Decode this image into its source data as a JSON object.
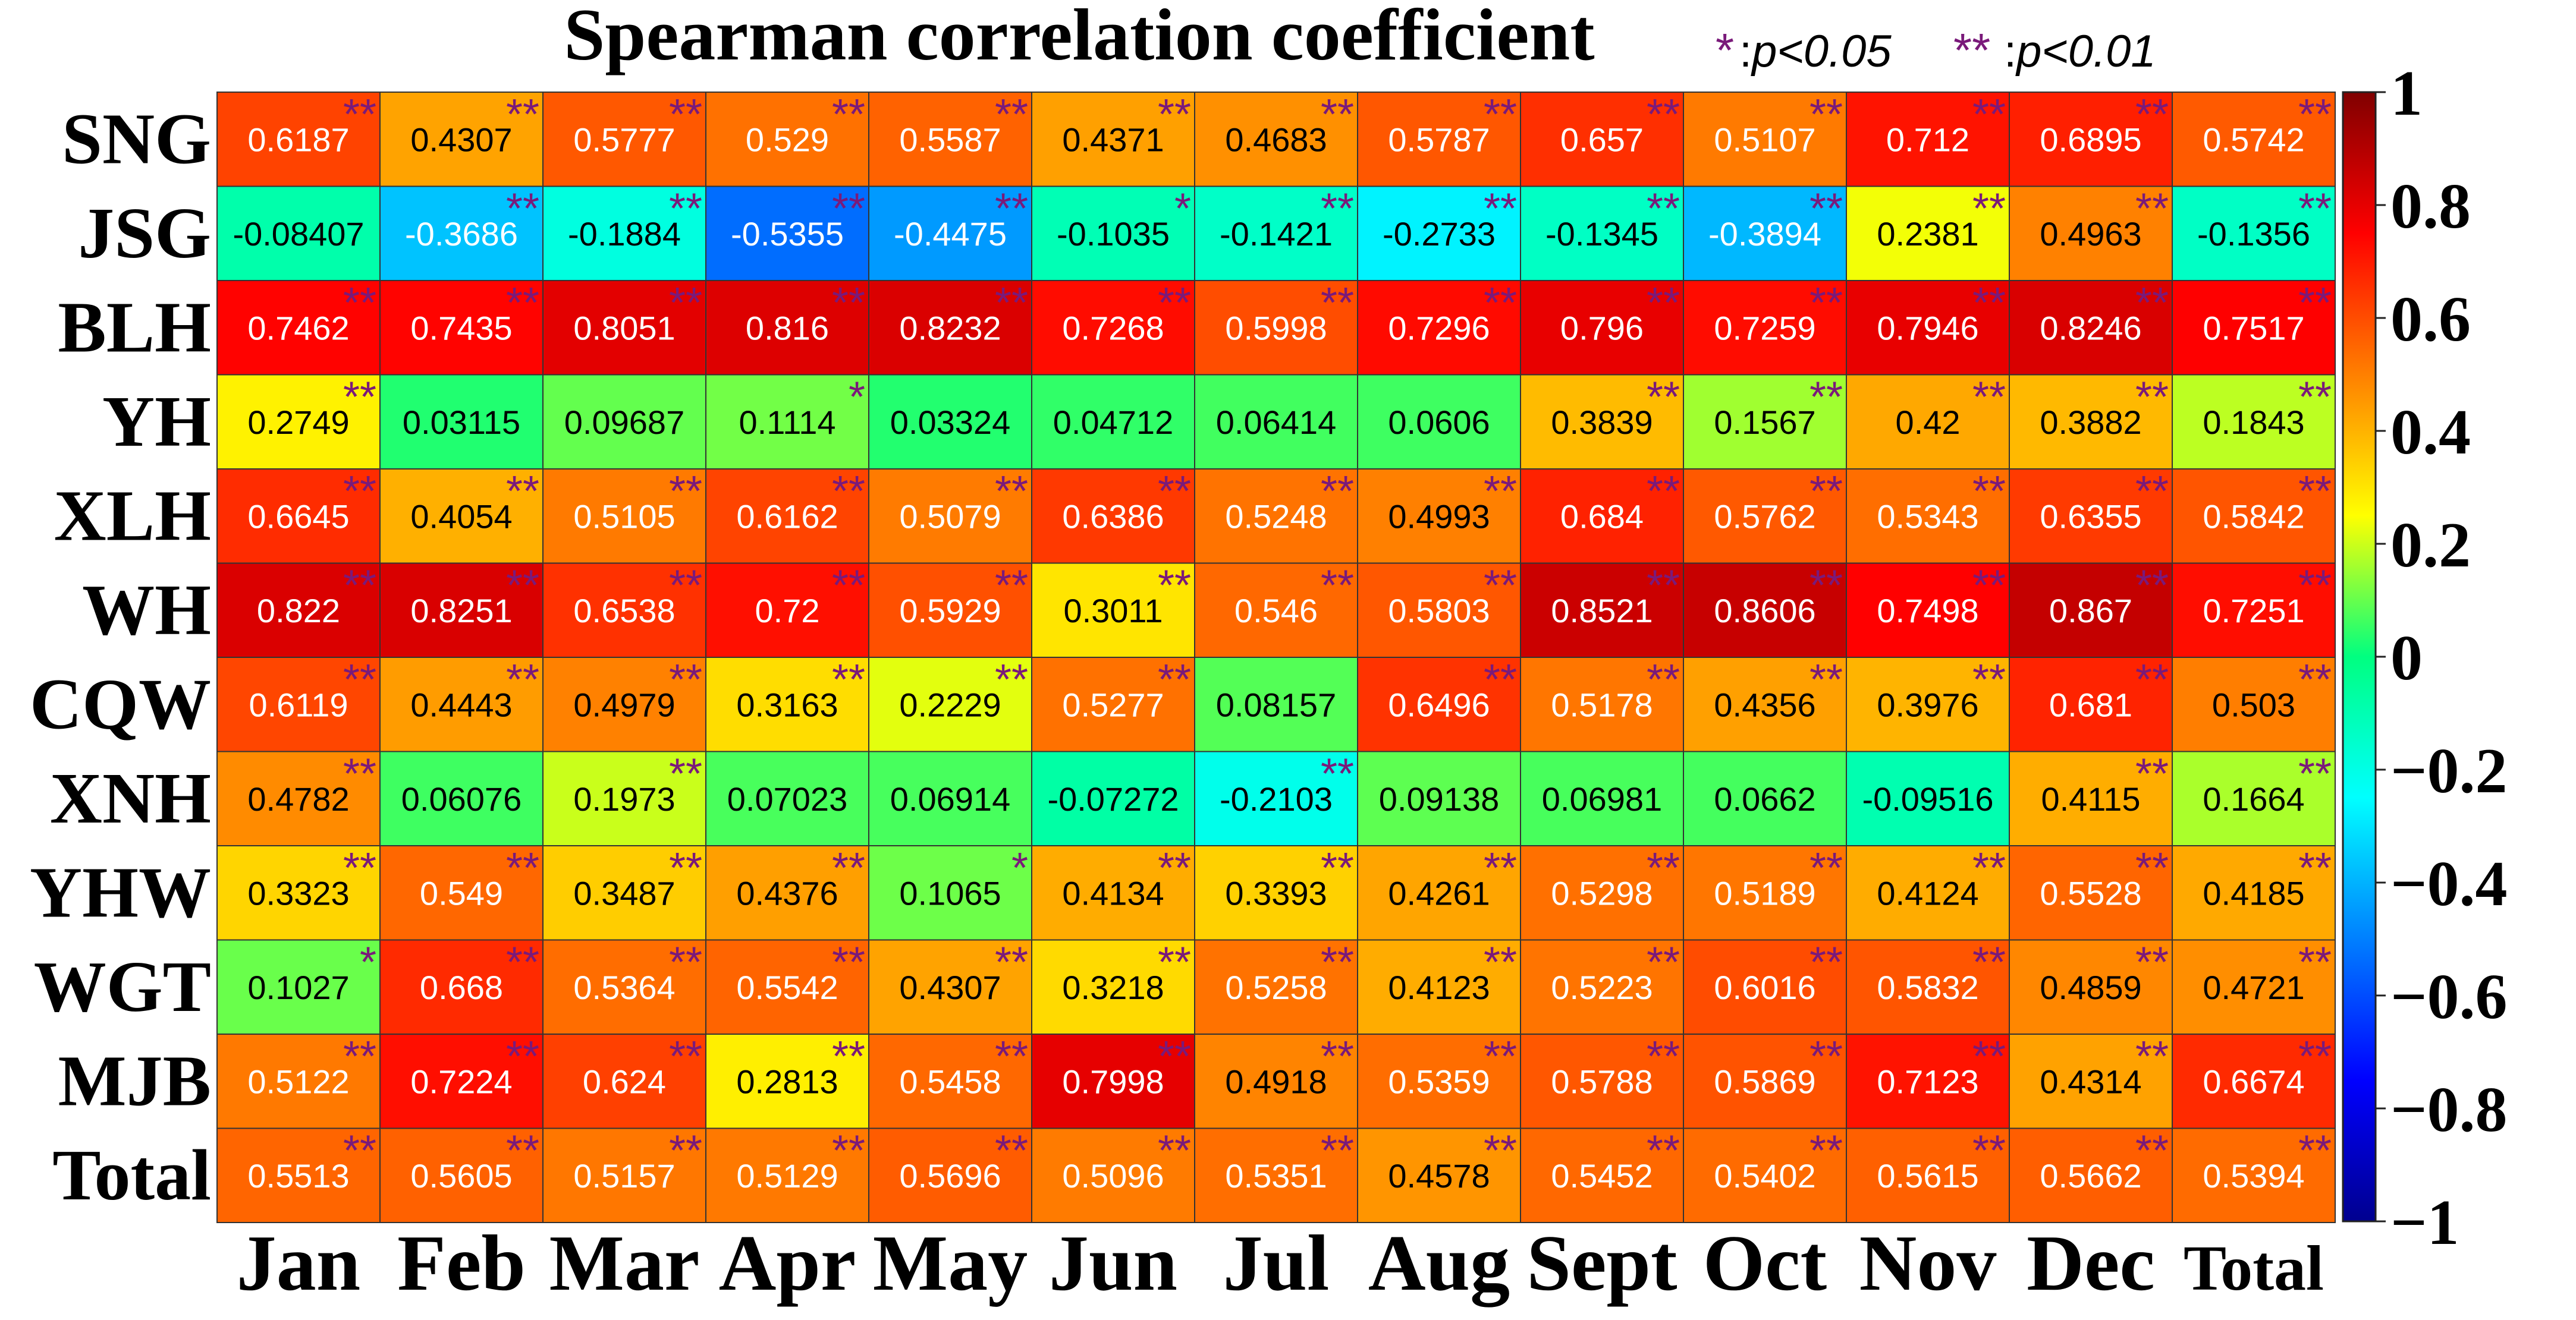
{
  "chart_data": {
    "type": "heatmap",
    "title": "Spearman correlation coefficient",
    "legend": {
      "single": {
        "symbol": "*",
        "text": "p<0.05"
      },
      "double": {
        "symbol": "**",
        "text": "p<0.01"
      }
    },
    "rows": [
      "SNG",
      "JSG",
      "BLH",
      "YH",
      "XLH",
      "WH",
      "CQW",
      "XNH",
      "YHW",
      "WGT",
      "MJB",
      "Total"
    ],
    "columns": [
      "Jan",
      "Feb",
      "Mar",
      "Apr",
      "May",
      "Jun",
      "Jul",
      "Aug",
      "Sept",
      "Oct",
      "Nov",
      "Dec",
      "Total"
    ],
    "values": [
      [
        "0.6187",
        "0.4307",
        "0.5777",
        "0.529",
        "0.5587",
        "0.4371",
        "0.4683",
        "0.5787",
        "0.657",
        "0.5107",
        "0.712",
        "0.6895",
        "0.5742"
      ],
      [
        "-0.08407",
        "-0.3686",
        "-0.1884",
        "-0.5355",
        "-0.4475",
        "-0.1035",
        "-0.1421",
        "-0.2733",
        "-0.1345",
        "-0.3894",
        "0.2381",
        "0.4963",
        "-0.1356"
      ],
      [
        "0.7462",
        "0.7435",
        "0.8051",
        "0.816",
        "0.8232",
        "0.7268",
        "0.5998",
        "0.7296",
        "0.796",
        "0.7259",
        "0.7946",
        "0.8246",
        "0.7517"
      ],
      [
        "0.2749",
        "0.03115",
        "0.09687",
        "0.1114",
        "0.03324",
        "0.04712",
        "0.06414",
        "0.0606",
        "0.3839",
        "0.1567",
        "0.42",
        "0.3882",
        "0.1843"
      ],
      [
        "0.6645",
        "0.4054",
        "0.5105",
        "0.6162",
        "0.5079",
        "0.6386",
        "0.5248",
        "0.4993",
        "0.684",
        "0.5762",
        "0.5343",
        "0.6355",
        "0.5842"
      ],
      [
        "0.822",
        "0.8251",
        "0.6538",
        "0.72",
        "0.5929",
        "0.3011",
        "0.546",
        "0.5803",
        "0.8521",
        "0.8606",
        "0.7498",
        "0.867",
        "0.7251"
      ],
      [
        "0.6119",
        "0.4443",
        "0.4979",
        "0.3163",
        "0.2229",
        "0.5277",
        "0.08157",
        "0.6496",
        "0.5178",
        "0.4356",
        "0.3976",
        "0.681",
        "0.503"
      ],
      [
        "0.4782",
        "0.06076",
        "0.1973",
        "0.07023",
        "0.06914",
        "-0.07272",
        "-0.2103",
        "0.09138",
        "0.06981",
        "0.0662",
        "-0.09516",
        "0.4115",
        "0.1664"
      ],
      [
        "0.3323",
        "0.549",
        "0.3487",
        "0.4376",
        "0.1065",
        "0.4134",
        "0.3393",
        "0.4261",
        "0.5298",
        "0.5189",
        "0.4124",
        "0.5528",
        "0.4185"
      ],
      [
        "0.1027",
        "0.668",
        "0.5364",
        "0.5542",
        "0.4307",
        "0.3218",
        "0.5258",
        "0.4123",
        "0.5223",
        "0.6016",
        "0.5832",
        "0.4859",
        "0.4721"
      ],
      [
        "0.5122",
        "0.7224",
        "0.624",
        "0.2813",
        "0.5458",
        "0.7998",
        "0.4918",
        "0.5359",
        "0.5788",
        "0.5869",
        "0.7123",
        "0.4314",
        "0.6674"
      ],
      [
        "0.5513",
        "0.5605",
        "0.5157",
        "0.5129",
        "0.5696",
        "0.5096",
        "0.5351",
        "0.4578",
        "0.5452",
        "0.5402",
        "0.5615",
        "0.5662",
        "0.5394"
      ]
    ],
    "significance": [
      [
        "**",
        "**",
        "**",
        "**",
        "**",
        "**",
        "**",
        "**",
        "**",
        "**",
        "**",
        "**",
        "**"
      ],
      [
        "",
        "**",
        "**",
        "**",
        "**",
        "*",
        "**",
        "**",
        "**",
        "**",
        "**",
        "**",
        "**"
      ],
      [
        "**",
        "**",
        "**",
        "**",
        "**",
        "**",
        "**",
        "**",
        "**",
        "**",
        "**",
        "**",
        "**"
      ],
      [
        "**",
        "",
        "",
        "*",
        "",
        "",
        "",
        "",
        "**",
        "**",
        "**",
        "**",
        "**"
      ],
      [
        "**",
        "**",
        "**",
        "**",
        "**",
        "**",
        "**",
        "**",
        "**",
        "**",
        "**",
        "**",
        "**"
      ],
      [
        "**",
        "**",
        "**",
        "**",
        "**",
        "**",
        "**",
        "**",
        "**",
        "**",
        "**",
        "**",
        "**"
      ],
      [
        "**",
        "**",
        "**",
        "**",
        "**",
        "**",
        "",
        "**",
        "**",
        "**",
        "**",
        "**",
        "**"
      ],
      [
        "**",
        "",
        "**",
        "",
        "",
        "",
        "**",
        "",
        "",
        "",
        "",
        "**",
        "**"
      ],
      [
        "**",
        "**",
        "**",
        "**",
        "*",
        "**",
        "**",
        "**",
        "**",
        "**",
        "**",
        "**",
        "**"
      ],
      [
        "*",
        "**",
        "**",
        "**",
        "**",
        "**",
        "**",
        "**",
        "**",
        "**",
        "**",
        "**",
        "**"
      ],
      [
        "**",
        "**",
        "**",
        "**",
        "**",
        "**",
        "**",
        "**",
        "**",
        "**",
        "**",
        "**",
        "**"
      ],
      [
        "**",
        "**",
        "**",
        "**",
        "**",
        "**",
        "**",
        "**",
        "**",
        "**",
        "**",
        "**",
        "**"
      ]
    ],
    "colorbar": {
      "range": [
        -1,
        1
      ],
      "ticks": [
        "1",
        "0.8",
        "0.6",
        "0.4",
        "0.2",
        "0",
        "−0.2",
        "−0.4",
        "−0.6",
        "−0.8",
        "−1"
      ],
      "colormap": "jet"
    },
    "colors": {
      "significance_marker": "#7a1a7a",
      "grid_line": "#333333"
    }
  }
}
